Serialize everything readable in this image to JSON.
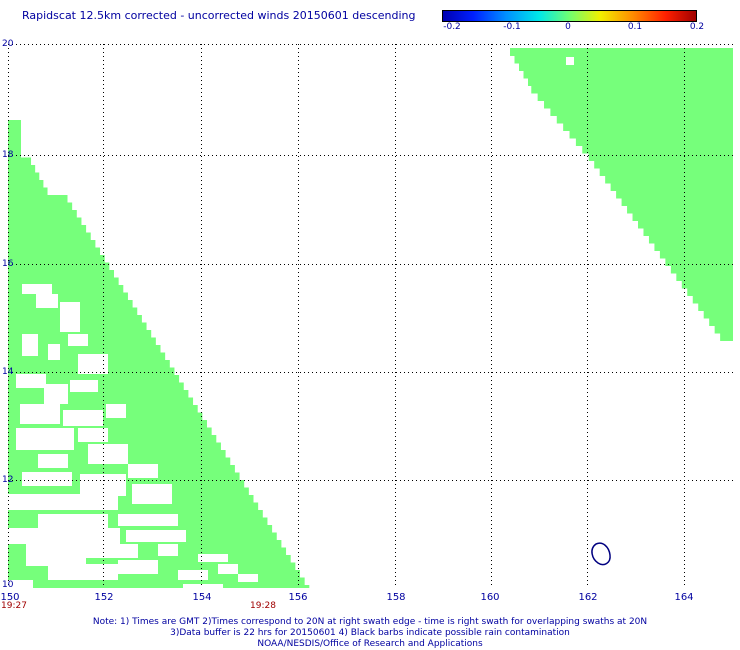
{
  "title": "Rapidscat 12.5km corrected - uncorrected winds 20150601 descending",
  "colorbar": {
    "ticks": [
      "-0.2",
      "-0.1",
      "0",
      "0.1",
      "0.2"
    ],
    "colors": [
      "#0000b0",
      "#0020ff",
      "#0090ff",
      "#00e8e8",
      "#70ff70",
      "#f0f000",
      "#ff8c00",
      "#ff2000",
      "#a00000"
    ]
  },
  "axes": {
    "x_ticks": [
      "150",
      "152",
      "154",
      "156",
      "158",
      "160",
      "162",
      "164"
    ],
    "y_ticks": [
      "20",
      "18",
      "16",
      "14",
      "12",
      "10"
    ],
    "lon_range": [
      150,
      165
    ],
    "lat_range": [
      10,
      20
    ],
    "grid": "dotted"
  },
  "time_labels": [
    {
      "text": "19:27",
      "lon": 150
    },
    {
      "text": "19:28",
      "lon": 155.3
    }
  ],
  "swath_color": "#76ff7b",
  "rain_contour_color": "#000080",
  "notes": [
    "Note: 1) Times are GMT 2)Times correspond to 20N at right swath edge - time is right swath for overlapping swaths at 20N",
    "3)Data buffer is 22 hrs for 20150601 4) Black barbs indicate possible rain contamination",
    "NOAA/NESDIS/Office of Research and Applications"
  ]
}
